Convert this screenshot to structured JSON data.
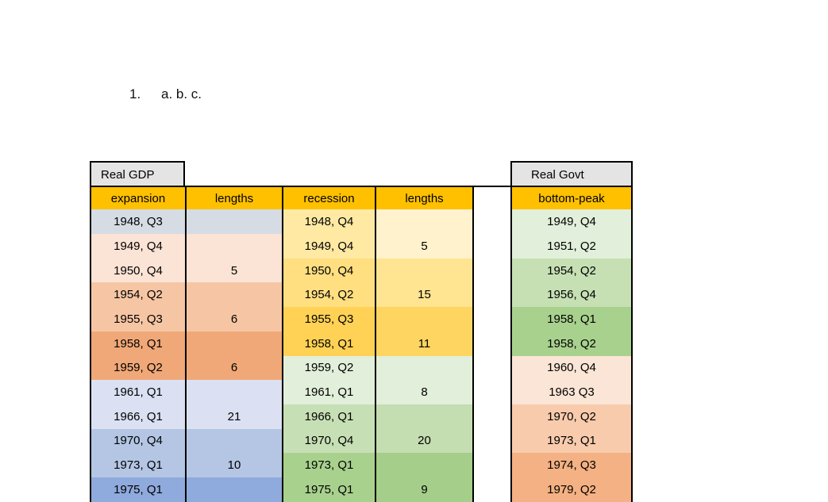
{
  "list_item": {
    "marker": "1.",
    "text": "a. b. c."
  },
  "table": {
    "gdp_title": "Real GDP",
    "govt_title": "Real Govt",
    "columns": [
      "expansion",
      "lengths",
      "recession",
      "lengths",
      "bottom-peak"
    ],
    "header_bg": "#FFC000",
    "title_bg": "#E4E4E4",
    "border_color": "#000000",
    "rows": [
      {
        "expansion": "1948, Q3",
        "exp_length": "",
        "recession": "1948, Q4",
        "rec_length": "",
        "bottom_peak": "1949, Q4",
        "colors": {
          "exp": "#D6DCE4",
          "exp_len": "#D6DCE4",
          "rec": "#FFE9A3",
          "rec_len": "#FFF2CC",
          "bp": "#E2EFDA"
        }
      },
      {
        "expansion": "1949, Q4",
        "exp_length": "",
        "recession": "1949, Q4",
        "rec_length": "5",
        "bottom_peak": "1951, Q2",
        "colors": {
          "exp": "#FBE3D5",
          "exp_len": "#FBE3D5",
          "rec": "#FFE9A3",
          "rec_len": "#FFF2CC",
          "bp": "#E2EFDA"
        }
      },
      {
        "expansion": "1950, Q4",
        "exp_length": "5",
        "recession": "1950, Q4",
        "rec_length": "",
        "bottom_peak": "1954, Q2",
        "colors": {
          "exp": "#FBE3D5",
          "exp_len": "#FBE3D5",
          "rec": "#FFDF80",
          "rec_len": "#FFE491",
          "bp": "#C6E0B4"
        }
      },
      {
        "expansion": "1954, Q2",
        "exp_length": "",
        "recession": "1954, Q2",
        "rec_length": "15",
        "bottom_peak": "1956, Q4",
        "colors": {
          "exp": "#F6C6A4",
          "exp_len": "#F6C6A4",
          "rec": "#FFDF80",
          "rec_len": "#FFE491",
          "bp": "#C6E0B4"
        }
      },
      {
        "expansion": "1955, Q3",
        "exp_length": "6",
        "recession": "1955, Q3",
        "rec_length": "",
        "bottom_peak": "1958, Q1",
        "colors": {
          "exp": "#F6C6A4",
          "exp_len": "#F6C6A4",
          "rec": "#FFD255",
          "rec_len": "#FFD561",
          "bp": "#A9D18E"
        }
      },
      {
        "expansion": "1958, Q1",
        "exp_length": "",
        "recession": "1958, Q1",
        "rec_length": "11",
        "bottom_peak": "1958, Q2",
        "colors": {
          "exp": "#F0A878",
          "exp_len": "#F0A878",
          "rec": "#FFD255",
          "rec_len": "#FFD561",
          "bp": "#A9D18E"
        }
      },
      {
        "expansion": "1959, Q2",
        "exp_length": "6",
        "recession": "1959, Q2",
        "rec_length": "",
        "bottom_peak": "1960, Q4",
        "colors": {
          "exp": "#F0A878",
          "exp_len": "#F0A878",
          "rec": "#E2EFDA",
          "rec_len": "#E2EFDA",
          "bp": "#FBE5D6"
        }
      },
      {
        "expansion": "1961, Q1",
        "exp_length": "",
        "recession": "1961, Q1",
        "rec_length": "8",
        "bottom_peak": "1963 Q3",
        "colors": {
          "exp": "#DBE1F2",
          "exp_len": "#DBE1F2",
          "rec": "#E2EFDA",
          "rec_len": "#E2EFDA",
          "bp": "#FBE5D6"
        }
      },
      {
        "expansion": "1966, Q1",
        "exp_length": "21",
        "recession": "1966, Q1",
        "rec_length": "",
        "bottom_peak": "1970, Q2",
        "colors": {
          "exp": "#DBE1F2",
          "exp_len": "#DBE1F2",
          "rec": "#C7DFB5",
          "rec_len": "#C4DDB1",
          "bp": "#F8CBAD"
        }
      },
      {
        "expansion": "1970, Q4",
        "exp_length": "",
        "recession": "1970, Q4",
        "rec_length": "20",
        "bottom_peak": "1973, Q1",
        "colors": {
          "exp": "#B4C6E3",
          "exp_len": "#B4C6E3",
          "rec": "#C7DFB5",
          "rec_len": "#C4DDB1",
          "bp": "#F8CBAD"
        }
      },
      {
        "expansion": "1973, Q1",
        "exp_length": "10",
        "recession": "1973, Q1",
        "rec_length": "",
        "bottom_peak": "1974, Q3",
        "colors": {
          "exp": "#B4C6E3",
          "exp_len": "#B4C6E3",
          "rec": "#A9D18E",
          "rec_len": "#A4CE89",
          "bp": "#F4B183"
        }
      },
      {
        "expansion": "1975, Q1",
        "exp_length": "",
        "recession": "1975, Q1",
        "rec_length": "9",
        "bottom_peak": "1979, Q2",
        "colors": {
          "exp": "#8FAADC",
          "exp_len": "#8FAADC",
          "rec": "#A9D18E",
          "rec_len": "#A4CE89",
          "bp": "#F4B183"
        }
      }
    ]
  }
}
